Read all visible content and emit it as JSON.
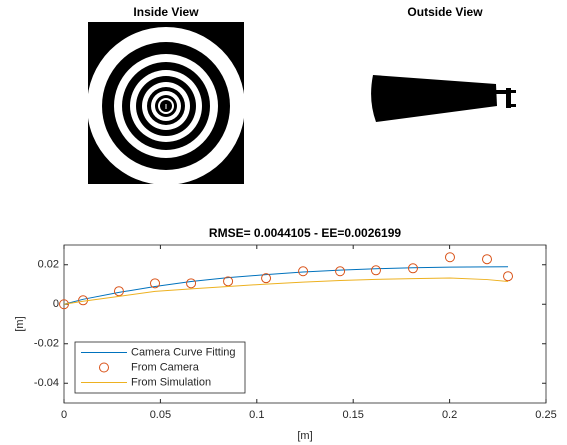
{
  "panels": [
    {
      "title": "Inside View"
    },
    {
      "title": "Outside View"
    }
  ],
  "chart_data": {
    "type": "line",
    "title": "RMSE= 0.0044105 - EE=0.0026199",
    "x_label": "[m]",
    "y_label": "[m]",
    "x": [
      0,
      0.0099,
      0.0285,
      0.0472,
      0.0659,
      0.0851,
      0.1048,
      0.124,
      0.1432,
      0.1618,
      0.181,
      0.2002,
      0.2194,
      0.2303
    ],
    "series": [
      {
        "name": "Camera Curve Fitting",
        "color": "#0072bd",
        "style": "line",
        "values": [
          0,
          0.0025,
          0.006,
          0.009,
          0.0115,
          0.0135,
          0.015,
          0.0163,
          0.0173,
          0.018,
          0.0185,
          0.0188,
          0.0189,
          0.019
        ]
      },
      {
        "name": "From Camera",
        "color": "#d95319",
        "style": "marker",
        "values": [
          0,
          0.002,
          0.0066,
          0.0106,
          0.0106,
          0.0116,
          0.0132,
          0.0167,
          0.0167,
          0.0172,
          0.0182,
          0.0238,
          0.0228,
          0.0142
        ]
      },
      {
        "name": "From Simulation",
        "color": "#edb120",
        "style": "line",
        "values": [
          0,
          0.0015,
          0.004,
          0.0065,
          0.0078,
          0.009,
          0.0102,
          0.0112,
          0.012,
          0.0126,
          0.013,
          0.0133,
          0.0125,
          0.0115
        ]
      }
    ],
    "xlim": [
      0,
      0.25
    ],
    "xticks": [
      0,
      0.05,
      0.1,
      0.15,
      0.2,
      0.25
    ],
    "ylim": [
      -0.05,
      0.03
    ],
    "yticks": [
      -0.04,
      -0.02,
      0,
      0.02
    ],
    "grid": false,
    "legend": "lower-left"
  }
}
